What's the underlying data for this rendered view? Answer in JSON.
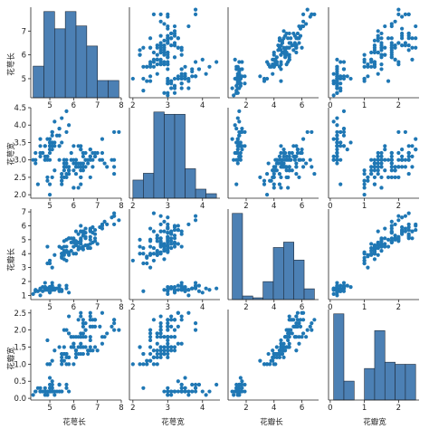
{
  "chart_data": {
    "type": "scatter",
    "title": "",
    "variables": [
      "花萼长",
      "花萼宽",
      "花瓣长",
      "花瓣宽"
    ],
    "diagonal": "histogram",
    "bins": 8,
    "point_color": "#1f77b4",
    "bar_color": "#4c80b4",
    "axes": {
      "花萼长": {
        "range": [
          4.2,
          8.0
        ],
        "ticks": [
          "5",
          "6",
          "7",
          "8"
        ],
        "tick_values": [
          5,
          6,
          7,
          8
        ],
        "y_ticks": [
          "5",
          "6",
          "7"
        ],
        "y_tick_values": [
          5,
          6,
          7
        ]
      },
      "花萼宽": {
        "range": [
          1.9,
          4.5
        ],
        "ticks": [
          "2",
          "3",
          "4"
        ],
        "tick_values": [
          2,
          3,
          4
        ],
        "y_ticks": [
          "2.0",
          "2.5",
          "3.0",
          "3.5",
          "4.0",
          "4.5"
        ],
        "y_tick_values": [
          2.0,
          2.5,
          3.0,
          3.5,
          4.0,
          4.5
        ]
      },
      "花瓣长": {
        "range": [
          0.7,
          7.2
        ],
        "ticks": [
          "2",
          "4",
          "6"
        ],
        "tick_values": [
          2,
          4,
          6
        ],
        "y_ticks": [
          "1",
          "2",
          "3",
          "4",
          "5",
          "6",
          "7"
        ],
        "y_tick_values": [
          1,
          2,
          3,
          4,
          5,
          6,
          7
        ]
      },
      "花瓣宽": {
        "range": [
          -0.05,
          2.6
        ],
        "ticks": [
          "0",
          "1",
          "2"
        ],
        "tick_values": [
          0,
          1,
          2
        ],
        "y_ticks": [
          "0.0",
          "0.5",
          "1.0",
          "1.5",
          "2.0",
          "2.5"
        ],
        "y_tick_values": [
          0.0,
          0.5,
          1.0,
          1.5,
          2.0,
          2.5
        ]
      }
    },
    "points": [
      [
        5.1,
        3.5,
        1.4,
        0.2
      ],
      [
        4.9,
        3.0,
        1.4,
        0.2
      ],
      [
        4.7,
        3.2,
        1.3,
        0.2
      ],
      [
        4.6,
        3.1,
        1.5,
        0.2
      ],
      [
        5.0,
        3.6,
        1.4,
        0.2
      ],
      [
        5.4,
        3.9,
        1.7,
        0.4
      ],
      [
        4.6,
        3.4,
        1.4,
        0.3
      ],
      [
        5.0,
        3.4,
        1.5,
        0.2
      ],
      [
        4.4,
        2.9,
        1.4,
        0.2
      ],
      [
        4.9,
        3.1,
        1.5,
        0.1
      ],
      [
        5.4,
        3.7,
        1.5,
        0.2
      ],
      [
        4.8,
        3.4,
        1.6,
        0.2
      ],
      [
        4.8,
        3.0,
        1.4,
        0.1
      ],
      [
        4.3,
        3.0,
        1.1,
        0.1
      ],
      [
        5.8,
        4.0,
        1.2,
        0.2
      ],
      [
        5.7,
        4.4,
        1.5,
        0.4
      ],
      [
        5.4,
        3.9,
        1.3,
        0.4
      ],
      [
        5.1,
        3.5,
        1.4,
        0.3
      ],
      [
        5.7,
        3.8,
        1.7,
        0.3
      ],
      [
        5.1,
        3.8,
        1.5,
        0.3
      ],
      [
        5.4,
        3.4,
        1.7,
        0.2
      ],
      [
        5.1,
        3.7,
        1.5,
        0.4
      ],
      [
        4.6,
        3.6,
        1.0,
        0.2
      ],
      [
        5.1,
        3.3,
        1.7,
        0.5
      ],
      [
        4.8,
        3.4,
        1.9,
        0.2
      ],
      [
        5.0,
        3.0,
        1.6,
        0.2
      ],
      [
        5.0,
        3.4,
        1.6,
        0.4
      ],
      [
        5.2,
        3.5,
        1.5,
        0.2
      ],
      [
        5.2,
        3.4,
        1.4,
        0.2
      ],
      [
        4.7,
        3.2,
        1.6,
        0.2
      ],
      [
        4.8,
        3.1,
        1.6,
        0.2
      ],
      [
        5.4,
        3.4,
        1.5,
        0.4
      ],
      [
        5.2,
        4.1,
        1.5,
        0.1
      ],
      [
        5.5,
        4.2,
        1.4,
        0.2
      ],
      [
        4.9,
        3.1,
        1.5,
        0.2
      ],
      [
        5.0,
        3.2,
        1.2,
        0.2
      ],
      [
        5.5,
        3.5,
        1.3,
        0.2
      ],
      [
        4.9,
        3.6,
        1.4,
        0.1
      ],
      [
        4.4,
        3.0,
        1.3,
        0.2
      ],
      [
        5.1,
        3.4,
        1.5,
        0.2
      ],
      [
        5.0,
        3.5,
        1.3,
        0.3
      ],
      [
        4.5,
        2.3,
        1.3,
        0.3
      ],
      [
        4.4,
        3.2,
        1.3,
        0.2
      ],
      [
        5.0,
        3.5,
        1.6,
        0.6
      ],
      [
        5.1,
        3.8,
        1.9,
        0.4
      ],
      [
        4.8,
        3.0,
        1.4,
        0.3
      ],
      [
        5.1,
        3.8,
        1.6,
        0.2
      ],
      [
        4.6,
        3.2,
        1.4,
        0.2
      ],
      [
        5.3,
        3.7,
        1.5,
        0.2
      ],
      [
        5.0,
        3.3,
        1.4,
        0.2
      ],
      [
        7.0,
        3.2,
        4.7,
        1.4
      ],
      [
        6.4,
        3.2,
        4.5,
        1.5
      ],
      [
        6.9,
        3.1,
        4.9,
        1.5
      ],
      [
        5.5,
        2.3,
        4.0,
        1.3
      ],
      [
        6.5,
        2.8,
        4.6,
        1.5
      ],
      [
        5.7,
        2.8,
        4.5,
        1.3
      ],
      [
        6.3,
        3.3,
        4.7,
        1.6
      ],
      [
        4.9,
        2.4,
        3.3,
        1.0
      ],
      [
        6.6,
        2.9,
        4.6,
        1.3
      ],
      [
        5.2,
        2.7,
        3.9,
        1.4
      ],
      [
        5.0,
        2.0,
        3.5,
        1.0
      ],
      [
        5.9,
        3.0,
        4.2,
        1.5
      ],
      [
        6.0,
        2.2,
        4.0,
        1.0
      ],
      [
        6.1,
        2.9,
        4.7,
        1.4
      ],
      [
        5.6,
        2.9,
        3.6,
        1.3
      ],
      [
        6.7,
        3.1,
        4.4,
        1.4
      ],
      [
        5.6,
        3.0,
        4.5,
        1.5
      ],
      [
        5.8,
        2.7,
        4.1,
        1.0
      ],
      [
        6.2,
        2.2,
        4.5,
        1.5
      ],
      [
        5.6,
        2.5,
        3.9,
        1.1
      ],
      [
        5.9,
        3.2,
        4.8,
        1.8
      ],
      [
        6.1,
        2.8,
        4.0,
        1.3
      ],
      [
        6.3,
        2.5,
        4.9,
        1.5
      ],
      [
        6.1,
        2.8,
        4.7,
        1.2
      ],
      [
        6.4,
        2.9,
        4.3,
        1.3
      ],
      [
        6.6,
        3.0,
        4.4,
        1.4
      ],
      [
        6.8,
        2.8,
        4.8,
        1.4
      ],
      [
        6.7,
        3.0,
        5.0,
        1.7
      ],
      [
        6.0,
        2.9,
        4.5,
        1.5
      ],
      [
        5.7,
        2.6,
        3.5,
        1.0
      ],
      [
        5.5,
        2.4,
        3.8,
        1.1
      ],
      [
        5.5,
        2.4,
        3.7,
        1.0
      ],
      [
        5.8,
        2.7,
        3.9,
        1.2
      ],
      [
        6.0,
        2.7,
        5.1,
        1.6
      ],
      [
        5.4,
        3.0,
        4.5,
        1.5
      ],
      [
        6.0,
        3.4,
        4.5,
        1.6
      ],
      [
        6.7,
        3.1,
        4.7,
        1.5
      ],
      [
        6.3,
        2.3,
        4.4,
        1.3
      ],
      [
        5.6,
        3.0,
        4.1,
        1.3
      ],
      [
        5.5,
        2.5,
        4.0,
        1.3
      ],
      [
        5.5,
        2.6,
        4.4,
        1.2
      ],
      [
        6.1,
        3.0,
        4.6,
        1.4
      ],
      [
        5.8,
        2.6,
        4.0,
        1.2
      ],
      [
        5.0,
        2.3,
        3.3,
        1.0
      ],
      [
        5.6,
        2.7,
        4.2,
        1.3
      ],
      [
        5.7,
        3.0,
        4.2,
        1.2
      ],
      [
        5.7,
        2.9,
        4.2,
        1.3
      ],
      [
        6.2,
        2.9,
        4.3,
        1.3
      ],
      [
        5.1,
        2.5,
        3.0,
        1.1
      ],
      [
        5.7,
        2.8,
        4.1,
        1.3
      ],
      [
        6.3,
        3.3,
        6.0,
        2.5
      ],
      [
        5.8,
        2.7,
        5.1,
        1.9
      ],
      [
        7.1,
        3.0,
        5.9,
        2.1
      ],
      [
        6.3,
        2.9,
        5.6,
        1.8
      ],
      [
        6.5,
        3.0,
        5.8,
        2.2
      ],
      [
        7.6,
        3.0,
        6.6,
        2.1
      ],
      [
        4.9,
        2.5,
        4.5,
        1.7
      ],
      [
        7.3,
        2.9,
        6.3,
        1.8
      ],
      [
        6.7,
        2.5,
        5.8,
        1.8
      ],
      [
        7.2,
        3.6,
        6.1,
        2.5
      ],
      [
        6.5,
        3.2,
        5.1,
        2.0
      ],
      [
        6.4,
        2.7,
        5.3,
        1.9
      ],
      [
        6.8,
        3.0,
        5.5,
        2.1
      ],
      [
        5.7,
        2.5,
        5.0,
        2.0
      ],
      [
        5.8,
        2.8,
        5.1,
        2.4
      ],
      [
        6.4,
        3.2,
        5.3,
        2.3
      ],
      [
        6.5,
        3.0,
        5.5,
        1.8
      ],
      [
        7.7,
        3.8,
        6.7,
        2.2
      ],
      [
        7.7,
        2.6,
        6.9,
        2.3
      ],
      [
        6.0,
        2.2,
        5.0,
        1.5
      ],
      [
        6.9,
        3.2,
        5.7,
        2.3
      ],
      [
        5.6,
        2.8,
        4.9,
        2.0
      ],
      [
        7.7,
        2.8,
        6.7,
        2.0
      ],
      [
        6.3,
        2.7,
        4.9,
        1.8
      ],
      [
        6.7,
        3.3,
        5.7,
        2.1
      ],
      [
        7.2,
        3.2,
        6.0,
        1.8
      ],
      [
        6.2,
        2.8,
        4.8,
        1.8
      ],
      [
        6.1,
        3.0,
        4.9,
        1.8
      ],
      [
        6.4,
        2.8,
        5.6,
        2.1
      ],
      [
        7.2,
        3.0,
        5.8,
        1.6
      ],
      [
        7.4,
        2.8,
        6.1,
        1.9
      ],
      [
        7.9,
        3.8,
        6.4,
        2.0
      ],
      [
        6.4,
        2.8,
        5.6,
        2.2
      ],
      [
        6.3,
        2.8,
        5.1,
        1.5
      ],
      [
        6.1,
        2.6,
        5.6,
        1.4
      ],
      [
        7.7,
        3.0,
        6.1,
        2.3
      ],
      [
        6.3,
        3.4,
        5.6,
        2.4
      ],
      [
        6.4,
        3.1,
        5.5,
        1.8
      ],
      [
        6.0,
        3.0,
        4.8,
        1.8
      ],
      [
        6.9,
        3.1,
        5.4,
        2.1
      ],
      [
        6.7,
        3.1,
        5.6,
        2.4
      ],
      [
        6.9,
        3.1,
        5.1,
        2.3
      ],
      [
        5.8,
        2.7,
        5.1,
        1.9
      ],
      [
        6.8,
        3.2,
        5.9,
        2.3
      ],
      [
        6.7,
        3.3,
        5.7,
        2.5
      ],
      [
        6.7,
        3.0,
        5.2,
        2.3
      ],
      [
        6.3,
        2.5,
        5.0,
        1.9
      ],
      [
        6.5,
        3.0,
        5.2,
        2.0
      ],
      [
        6.2,
        3.4,
        5.4,
        2.3
      ],
      [
        5.9,
        3.0,
        5.1,
        1.8
      ]
    ]
  }
}
